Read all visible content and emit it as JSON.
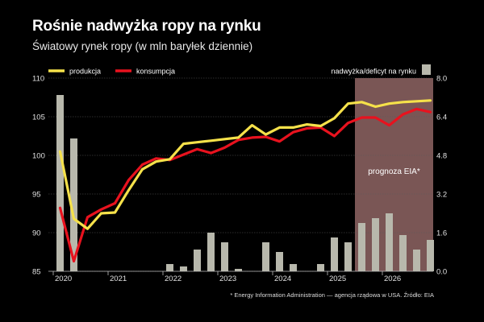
{
  "title": "Rośnie nadwyżka ropy na rynku",
  "subtitle": "Światowy rynek ropy (w mln baryłek dziennie)",
  "footnote": "* Energy Information Administration — agencja rządowa w USA. Źródło: EIA",
  "chart_data": {
    "type": "line",
    "left_axis": {
      "min": 85,
      "max": 110,
      "ticks": [
        85,
        90,
        95,
        100,
        105,
        110
      ]
    },
    "right_axis": {
      "min": 0,
      "max": 8,
      "ticks": [
        "0.0",
        "1.6",
        "3.2",
        "4.8",
        "6.4",
        "8.0"
      ]
    },
    "x_labels": [
      "2020",
      "2021",
      "2022",
      "2023",
      "2024",
      "2025",
      "2026"
    ],
    "forecast_label": "prognoza EIA*",
    "colors": {
      "production": "#f5e14a",
      "consumption": "#e8121e",
      "balance": "#b8b8ac",
      "forecast": "#7a5655"
    },
    "legend": [
      {
        "key": "production",
        "label": "produkcja"
      },
      {
        "key": "consumption",
        "label": "konsumpcja"
      },
      {
        "key": "balance",
        "label": "nadwyżka/deficyt na rynku"
      }
    ],
    "quarters": [
      "2020Q1",
      "2020Q2",
      "2020Q3",
      "2020Q4",
      "2021Q1",
      "2021Q2",
      "2021Q3",
      "2021Q4",
      "2022Q1",
      "2022Q2",
      "2022Q3",
      "2022Q4",
      "2023Q1",
      "2023Q2",
      "2023Q3",
      "2023Q4",
      "2024Q1",
      "2024Q2",
      "2024Q3",
      "2024Q4",
      "2025Q1",
      "2025Q2",
      "2025Q3",
      "2025Q4",
      "2026Q1",
      "2026Q2",
      "2026Q3",
      "2026Q4"
    ],
    "forecast_start": "2025Q3",
    "series": [
      {
        "key": "production",
        "name": "produkcja",
        "values": [
          100.5,
          91.8,
          90.5,
          92.5,
          92.6,
          95.5,
          98.2,
          99.2,
          99.5,
          101.5,
          101.7,
          101.9,
          102.1,
          102.3,
          103.9,
          102.7,
          103.6,
          103.6,
          104.0,
          103.8,
          104.8,
          106.7,
          106.9,
          106.3,
          106.7,
          106.9,
          107.0,
          107.1
        ]
      },
      {
        "key": "consumption",
        "name": "konsumpcja",
        "values": [
          93.2,
          86.3,
          92.0,
          93.0,
          93.8,
          96.8,
          98.8,
          99.6,
          99.4,
          100.1,
          100.8,
          100.3,
          101.0,
          102.0,
          102.3,
          102.4,
          101.8,
          103.0,
          103.5,
          103.6,
          102.5,
          104.2,
          104.9,
          104.9,
          103.9,
          105.3,
          106.0,
          105.6
        ]
      },
      {
        "key": "balance",
        "name": "nadwyżka/deficyt na rynku",
        "values": [
          7.3,
          5.5,
          0,
          0,
          0,
          0,
          0,
          0,
          0.3,
          0.2,
          0.9,
          1.6,
          1.2,
          0.1,
          0,
          1.2,
          0.8,
          0.3,
          0,
          0.3,
          1.4,
          1.2,
          2.0,
          2.2,
          2.4,
          1.5,
          0.9,
          1.3
        ]
      }
    ]
  }
}
